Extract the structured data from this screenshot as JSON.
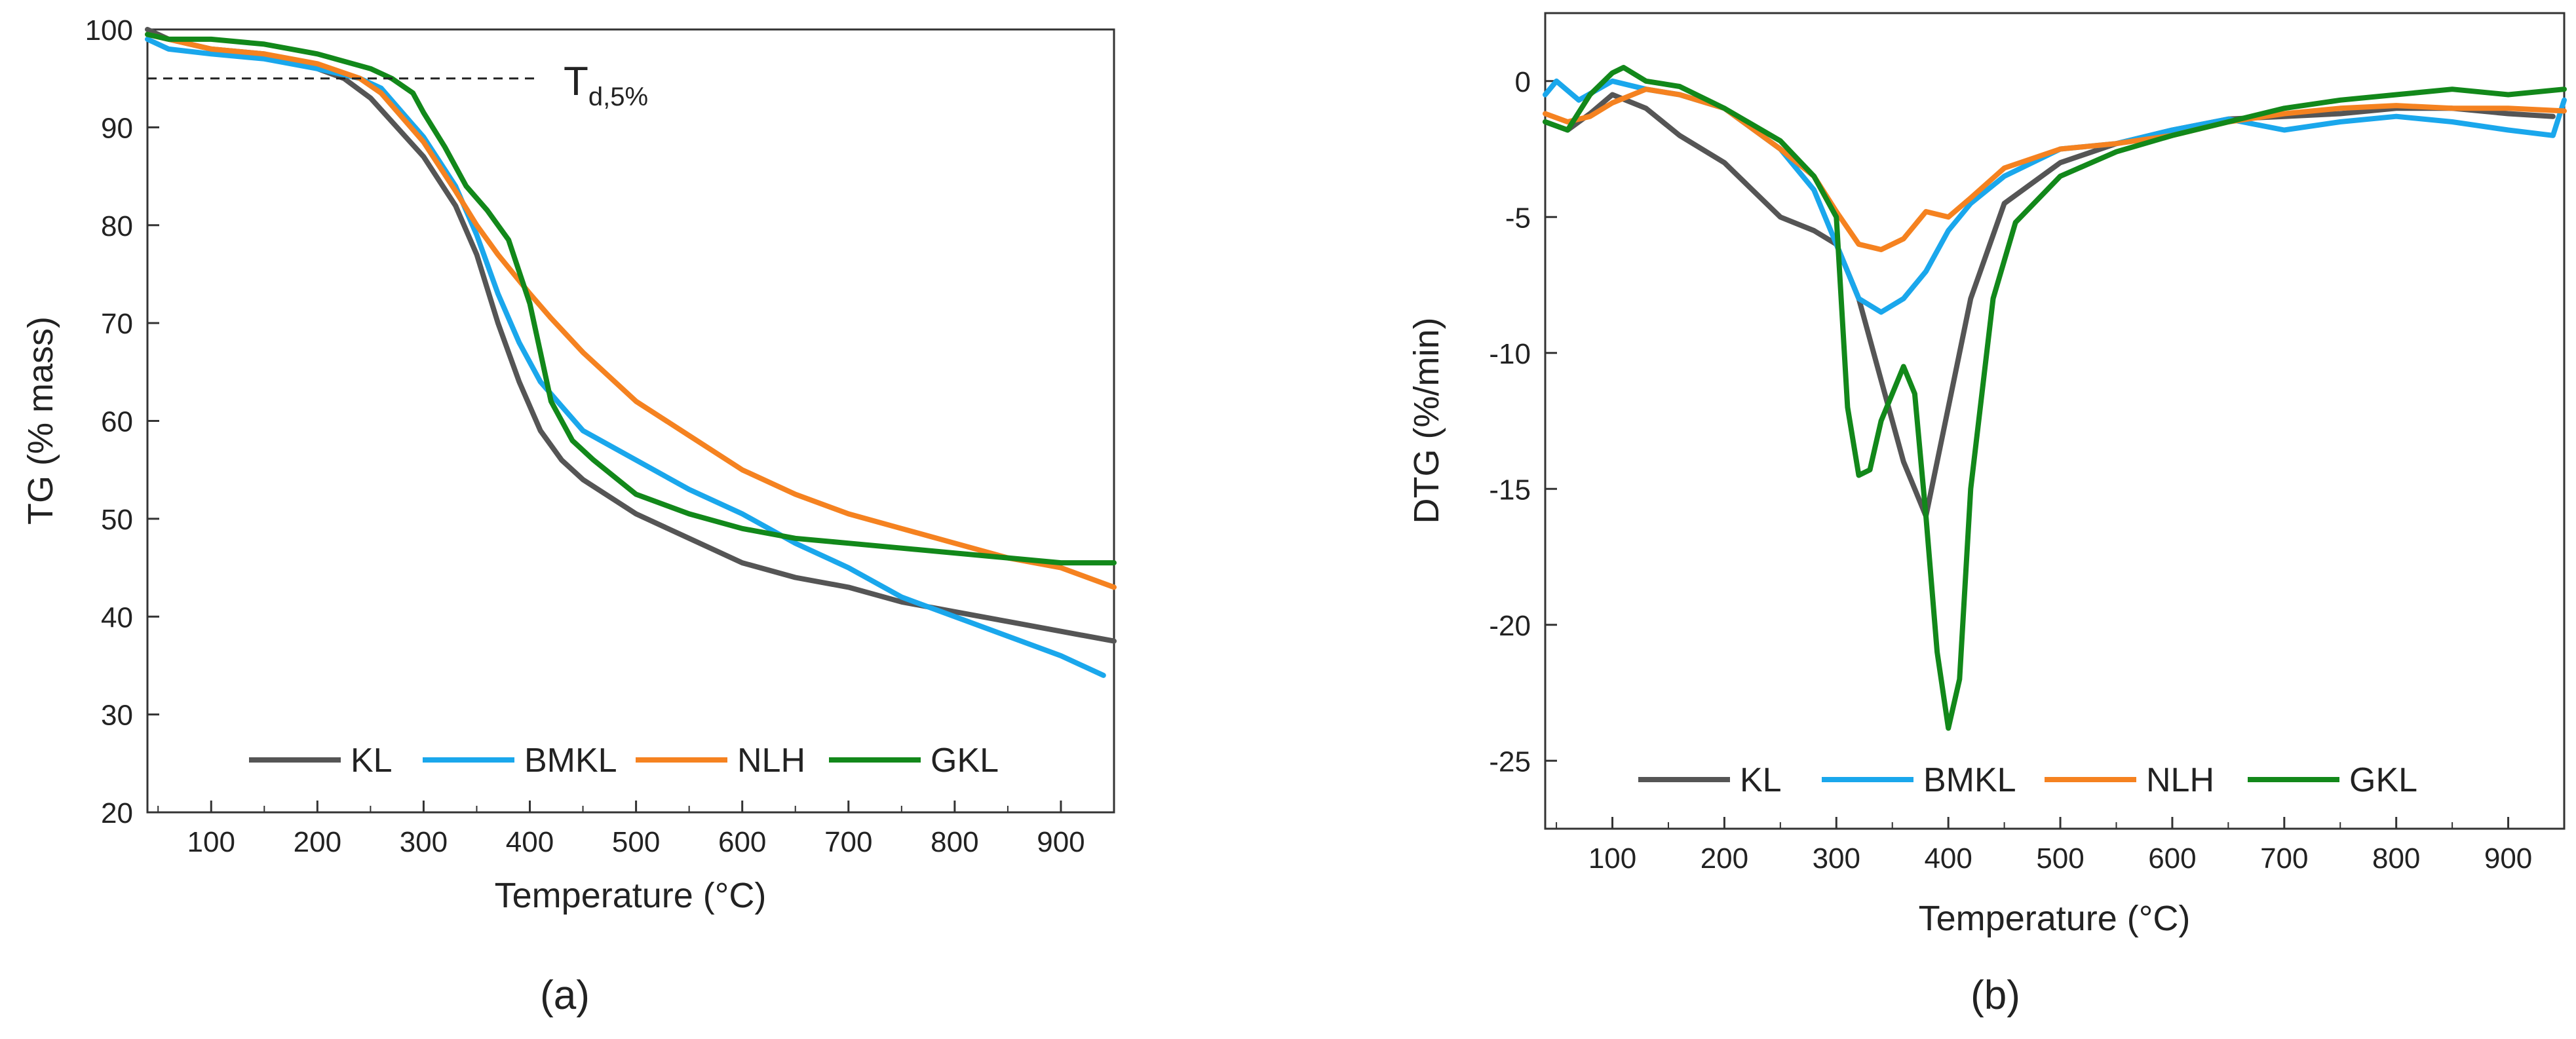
{
  "charts": [
    {
      "id": "a",
      "panel_label": "(a)",
      "xlabel": "Temperature (°C)",
      "ylabel": "TG (% mass)",
      "annotation": "T_d,5% line at 95 % mass",
      "annotation_main": "T",
      "annotation_sub": "d,5%"
    },
    {
      "id": "b",
      "panel_label": "(b)",
      "xlabel": "Temperature (°C)",
      "ylabel": "DTG (%/min)"
    }
  ],
  "colors": {
    "KL": "#555555",
    "BMKL": "#1aa7ec",
    "NLH": "#f58220",
    "GKL": "#12881a"
  },
  "chart_data": [
    {
      "type": "line",
      "title": "",
      "xlabel": "Temperature (°C)",
      "ylabel": "TG (% mass)",
      "xlim": [
        40,
        950
      ],
      "ylim": [
        20,
        100
      ],
      "xticks": [
        100,
        200,
        300,
        400,
        500,
        600,
        700,
        800,
        900
      ],
      "yticks": [
        20,
        30,
        40,
        50,
        60,
        70,
        80,
        90,
        100
      ],
      "legend": [
        "KL",
        "BMKL",
        "NLH",
        "GKL"
      ],
      "legend_position": "bottom-center",
      "reference_line": {
        "y": 95,
        "x_range": [
          40,
          410
        ],
        "style": "dashed",
        "label": "T_d,5%"
      },
      "series": [
        {
          "name": "KL",
          "x": [
            40,
            60,
            100,
            150,
            200,
            225,
            250,
            300,
            330,
            350,
            370,
            390,
            410,
            430,
            450,
            500,
            550,
            600,
            650,
            700,
            750,
            800,
            850,
            900,
            950
          ],
          "values": [
            100,
            99,
            98,
            97.5,
            96,
            95,
            93,
            87,
            82,
            77,
            70,
            64,
            59,
            56,
            54,
            50.5,
            48,
            45.5,
            44,
            43,
            41.5,
            40.5,
            39.5,
            38.5,
            37.5
          ]
        },
        {
          "name": "BMKL",
          "x": [
            40,
            60,
            100,
            150,
            200,
            240,
            260,
            300,
            330,
            350,
            370,
            390,
            410,
            430,
            450,
            500,
            550,
            600,
            650,
            700,
            750,
            800,
            850,
            900,
            940
          ],
          "values": [
            99,
            98,
            97.5,
            97,
            96,
            95,
            94,
            89,
            84,
            79,
            73,
            68,
            64,
            61.5,
            59,
            56,
            53,
            50.5,
            47.5,
            45,
            42,
            40,
            38,
            36,
            34
          ]
        },
        {
          "name": "NLH",
          "x": [
            40,
            60,
            100,
            150,
            200,
            240,
            260,
            300,
            330,
            350,
            370,
            400,
            420,
            450,
            500,
            550,
            600,
            650,
            700,
            750,
            800,
            850,
            900,
            950
          ],
          "values": [
            99.5,
            99,
            98,
            97.5,
            96.5,
            95,
            93.5,
            88.5,
            83.5,
            80,
            77,
            73,
            70.5,
            67,
            62,
            58.5,
            55,
            52.5,
            50.5,
            49,
            47.5,
            46,
            45,
            43
          ]
        },
        {
          "name": "GKL",
          "x": [
            40,
            60,
            100,
            150,
            200,
            250,
            270,
            290,
            300,
            320,
            340,
            360,
            380,
            400,
            410,
            420,
            440,
            460,
            500,
            550,
            600,
            650,
            700,
            750,
            800,
            850,
            900,
            950
          ],
          "values": [
            99.5,
            99,
            99,
            98.5,
            97.5,
            96,
            95,
            93.5,
            91.5,
            88,
            84,
            81.5,
            78.5,
            72,
            67,
            62,
            58,
            56,
            52.5,
            50.5,
            49,
            48,
            47.5,
            47,
            46.5,
            46,
            45.5,
            45.5
          ]
        }
      ]
    },
    {
      "type": "line",
      "title": "",
      "xlabel": "Temperature (°C)",
      "ylabel": "DTG (%/min)",
      "xlim": [
        40,
        950
      ],
      "ylim": [
        -27.5,
        2.5
      ],
      "xticks": [
        100,
        200,
        300,
        400,
        500,
        600,
        700,
        800,
        900
      ],
      "yticks": [
        0,
        -5,
        -10,
        -15,
        -20,
        -25
      ],
      "legend": [
        "KL",
        "BMKL",
        "NLH",
        "GKL"
      ],
      "legend_position": "bottom-center",
      "series": [
        {
          "name": "KL",
          "x": [
            40,
            60,
            80,
            100,
            130,
            160,
            200,
            250,
            280,
            300,
            320,
            340,
            360,
            380,
            400,
            420,
            450,
            500,
            550,
            600,
            650,
            700,
            750,
            800,
            850,
            900,
            940
          ],
          "values": [
            -1.5,
            -1.8,
            -1.2,
            -0.5,
            -1,
            -2,
            -3,
            -5,
            -5.5,
            -6,
            -8,
            -11,
            -14,
            -16,
            -12,
            -8,
            -4.5,
            -3,
            -2.3,
            -1.8,
            -1.4,
            -1.3,
            -1.2,
            -1,
            -1,
            -1.2,
            -1.3
          ]
        },
        {
          "name": "BMKL",
          "x": [
            40,
            50,
            70,
            100,
            130,
            160,
            200,
            250,
            280,
            300,
            320,
            340,
            360,
            380,
            400,
            420,
            450,
            500,
            550,
            600,
            650,
            700,
            750,
            800,
            850,
            900,
            940,
            950
          ],
          "values": [
            -0.5,
            0,
            -0.7,
            0,
            -0.3,
            -0.5,
            -1,
            -2.5,
            -4,
            -6,
            -8,
            -8.5,
            -8,
            -7,
            -5.5,
            -4.5,
            -3.5,
            -2.5,
            -2.3,
            -1.8,
            -1.4,
            -1.8,
            -1.5,
            -1.3,
            -1.5,
            -1.8,
            -2,
            -0.7
          ]
        },
        {
          "name": "NLH",
          "x": [
            40,
            60,
            80,
            100,
            130,
            160,
            200,
            250,
            280,
            300,
            320,
            340,
            360,
            380,
            400,
            420,
            450,
            500,
            550,
            600,
            650,
            700,
            750,
            800,
            850,
            900,
            950
          ],
          "values": [
            -1.2,
            -1.5,
            -1.3,
            -0.8,
            -0.3,
            -0.5,
            -1,
            -2.5,
            -3.5,
            -4.8,
            -6,
            -6.2,
            -5.8,
            -4.8,
            -5,
            -4.3,
            -3.2,
            -2.5,
            -2.3,
            -2,
            -1.5,
            -1.2,
            -1,
            -0.9,
            -1,
            -1,
            -1.1
          ]
        },
        {
          "name": "GKL",
          "x": [
            40,
            60,
            80,
            100,
            110,
            130,
            160,
            200,
            250,
            280,
            300,
            310,
            320,
            330,
            340,
            360,
            370,
            380,
            390,
            400,
            410,
            420,
            440,
            460,
            500,
            550,
            600,
            650,
            700,
            750,
            800,
            850,
            900,
            950
          ],
          "values": [
            -1.5,
            -1.8,
            -0.5,
            0.3,
            0.5,
            0,
            -0.2,
            -1,
            -2.2,
            -3.5,
            -5,
            -12,
            -14.5,
            -14.3,
            -12.5,
            -10.5,
            -11.5,
            -16,
            -21,
            -23.8,
            -22,
            -15,
            -8,
            -5.2,
            -3.5,
            -2.6,
            -2,
            -1.5,
            -1,
            -0.7,
            -0.5,
            -0.3,
            -0.5,
            -0.3
          ]
        }
      ]
    }
  ]
}
